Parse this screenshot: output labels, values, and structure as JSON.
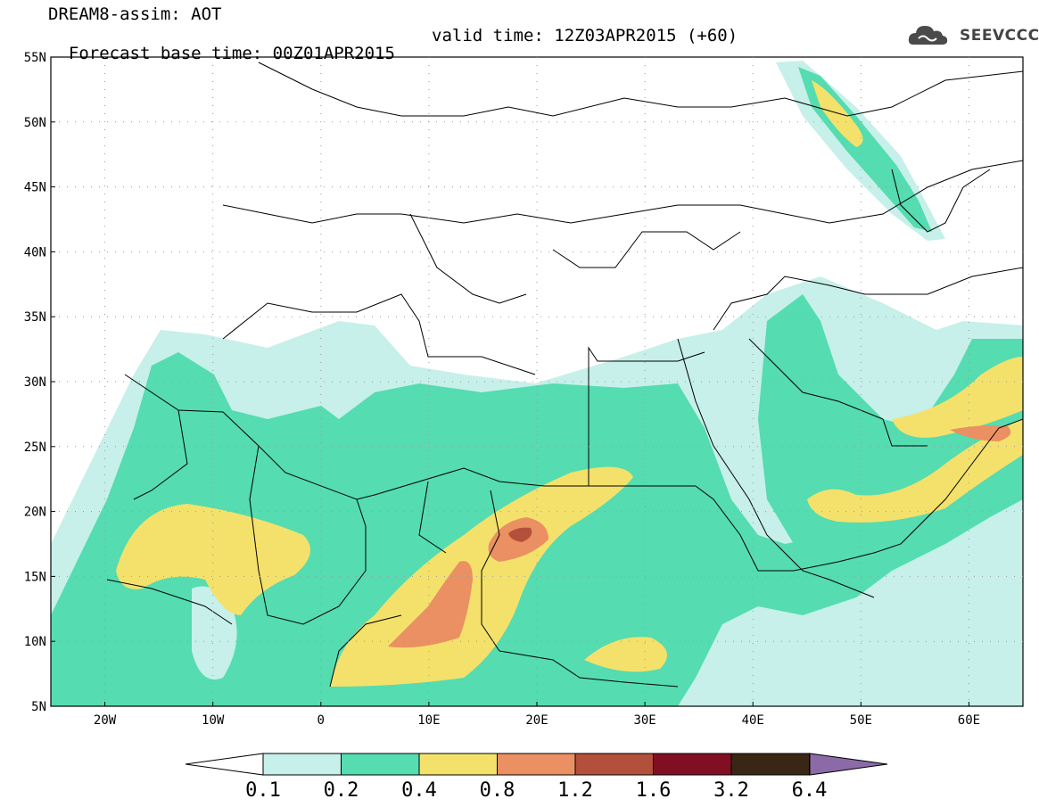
{
  "header": {
    "line1": "DREAM8-assim: AOT",
    "base_time": "Forecast base time: 00Z01APR2015",
    "valid_time": "valid time: 12Z03APR2015 (+60)",
    "logo_text": "SEEVCCC"
  },
  "map": {
    "lat_labels": [
      "55N",
      "50N",
      "45N",
      "40N",
      "35N",
      "30N",
      "25N",
      "20N",
      "15N",
      "10N",
      "5N"
    ],
    "lon_labels": [
      "20W",
      "10W",
      "0",
      "10E",
      "20E",
      "30E",
      "40E",
      "50E",
      "60E"
    ],
    "lat_range": [
      5,
      55
    ],
    "lon_range": [
      -25,
      65
    ],
    "field": "AOT (dust aerosol optical thickness)"
  },
  "colorbar": {
    "labels": [
      "0.1",
      "0.2",
      "0.4",
      "0.8",
      "1.2",
      "1.6",
      "3.2",
      "6.4"
    ],
    "colors": [
      "#c6f0e9",
      "#55dcb0",
      "#f4e16b",
      "#ea9062",
      "#b3503b",
      "#800f23",
      "#3a2615",
      "#8c6aa8"
    ]
  }
}
